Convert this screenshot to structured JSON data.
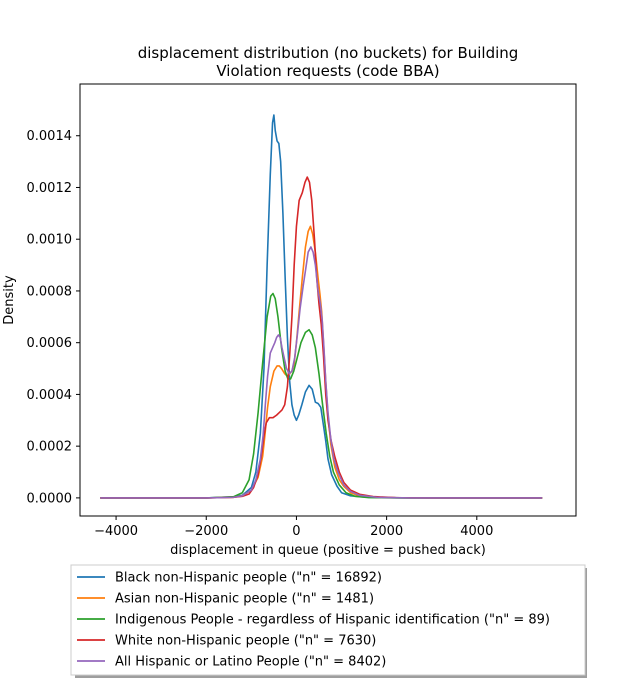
{
  "chart_data": {
    "type": "line",
    "title_line1": "displacement distribution (no buckets)  for Building",
    "title_line2": "Violation requests (code BBA)",
    "xlabel": "displacement in queue (positive = pushed back)",
    "ylabel": "Density",
    "xlim": [
      -4800,
      6200
    ],
    "ylim": [
      -7e-05,
      0.0016
    ],
    "x_ticks": [
      -4000,
      -2000,
      0,
      2000,
      4000
    ],
    "x_tick_labels": [
      "−4000",
      "−2000",
      "0",
      "2000",
      "4000"
    ],
    "y_ticks": [
      0.0,
      0.0002,
      0.0004,
      0.0006,
      0.0008,
      0.001,
      0.0012,
      0.0014
    ],
    "y_tick_labels": [
      "0.0000",
      "0.0002",
      "0.0004",
      "0.0006",
      "0.0008",
      "0.0010",
      "0.0012",
      "0.0014"
    ],
    "grid": false,
    "legend_placement": "below",
    "series": [
      {
        "name": "Black non-Hispanic people (\"n\" = 16892)",
        "color": "#1f77b4",
        "points": [
          [
            -4350,
            0
          ],
          [
            -2000,
            0
          ],
          [
            -1400,
            4e-06
          ],
          [
            -1200,
            1e-05
          ],
          [
            -1000,
            4e-05
          ],
          [
            -900,
            0.0001
          ],
          [
            -800,
            0.00025
          ],
          [
            -720,
            0.0005
          ],
          [
            -650,
            0.0009
          ],
          [
            -580,
            0.00125
          ],
          [
            -530,
            0.00145
          ],
          [
            -500,
            0.00148
          ],
          [
            -470,
            0.00142
          ],
          [
            -430,
            0.00138
          ],
          [
            -390,
            0.00137
          ],
          [
            -350,
            0.0013
          ],
          [
            -300,
            0.0011
          ],
          [
            -250,
            0.00085
          ],
          [
            -200,
            0.00062
          ],
          [
            -150,
            0.00045
          ],
          [
            -100,
            0.00036
          ],
          [
            -50,
            0.00032
          ],
          [
            0,
            0.0003
          ],
          [
            50,
            0.00032
          ],
          [
            120,
            0.00036
          ],
          [
            200,
            0.00041
          ],
          [
            280,
            0.000435
          ],
          [
            350,
            0.00042
          ],
          [
            420,
            0.00037
          ],
          [
            480,
            0.000365
          ],
          [
            540,
            0.00035
          ],
          [
            600,
            0.00028
          ],
          [
            650,
            0.00022
          ],
          [
            700,
            0.00015
          ],
          [
            780,
            9e-05
          ],
          [
            900,
            4.5e-05
          ],
          [
            1000,
            2e-05
          ],
          [
            1200,
            8e-06
          ],
          [
            1600,
            2e-06
          ],
          [
            2500,
            0
          ],
          [
            5450,
            0
          ]
        ]
      },
      {
        "name": "Asian non-Hispanic people (\"n\" = 1481)",
        "color": "#ff7f0e",
        "points": [
          [
            -4350,
            0
          ],
          [
            -2000,
            0
          ],
          [
            -1400,
            2e-06
          ],
          [
            -1200,
            8e-06
          ],
          [
            -1000,
            3e-05
          ],
          [
            -850,
            8e-05
          ],
          [
            -750,
            0.00016
          ],
          [
            -700,
            0.00024
          ],
          [
            -640,
            0.00035
          ],
          [
            -580,
            0.00043
          ],
          [
            -500,
            0.00049
          ],
          [
            -430,
            0.00051
          ],
          [
            -380,
            0.00051
          ],
          [
            -330,
            0.0005
          ],
          [
            -260,
            0.00048
          ],
          [
            -200,
            0.00047
          ],
          [
            -150,
            0.00048
          ],
          [
            -100,
            0.00049
          ],
          [
            -50,
            0.00052
          ],
          [
            0,
            0.0006
          ],
          [
            60,
            0.00072
          ],
          [
            130,
            0.00085
          ],
          [
            200,
            0.00097
          ],
          [
            260,
            0.00103
          ],
          [
            310,
            0.00105
          ],
          [
            360,
            0.00102
          ],
          [
            420,
            0.00095
          ],
          [
            480,
            0.00085
          ],
          [
            520,
            0.00079
          ],
          [
            560,
            0.00072
          ],
          [
            600,
            0.0006
          ],
          [
            650,
            0.00045
          ],
          [
            700,
            0.00032
          ],
          [
            760,
            0.00021
          ],
          [
            850,
            0.00012
          ],
          [
            950,
            7e-05
          ],
          [
            1050,
            4.5e-05
          ],
          [
            1200,
            2e-05
          ],
          [
            1400,
            8e-06
          ],
          [
            1800,
            2e-06
          ],
          [
            2500,
            0
          ],
          [
            5450,
            0
          ]
        ]
      },
      {
        "name": "Indigenous People - regardless of Hispanic identification (\"n\" = 89)",
        "color": "#2ca02c",
        "points": [
          [
            -4350,
            0
          ],
          [
            -2000,
            0
          ],
          [
            -1400,
            4e-06
          ],
          [
            -1200,
            2e-05
          ],
          [
            -1050,
            7e-05
          ],
          [
            -950,
            0.00017
          ],
          [
            -850,
            0.00033
          ],
          [
            -750,
            0.00052
          ],
          [
            -650,
            0.0007
          ],
          [
            -570,
            0.00078
          ],
          [
            -520,
            0.00079
          ],
          [
            -470,
            0.00077
          ],
          [
            -410,
            0.0007
          ],
          [
            -330,
            0.00058
          ],
          [
            -250,
            0.00049
          ],
          [
            -190,
            0.00046
          ],
          [
            -130,
            0.00046
          ],
          [
            -60,
            0.00049
          ],
          [
            0,
            0.00053
          ],
          [
            100,
            0.0006
          ],
          [
            200,
            0.00064
          ],
          [
            280,
            0.00065
          ],
          [
            350,
            0.00063
          ],
          [
            420,
            0.00058
          ],
          [
            500,
            0.00048
          ],
          [
            580,
            0.00036
          ],
          [
            660,
            0.00025
          ],
          [
            740,
            0.00016
          ],
          [
            820,
            0.0001
          ],
          [
            950,
            5e-05
          ],
          [
            1100,
            2e-05
          ],
          [
            1300,
            6e-06
          ],
          [
            1600,
            1e-06
          ],
          [
            2200,
            0
          ],
          [
            5450,
            0
          ]
        ]
      },
      {
        "name": "White non-Hispanic people (\"n\" = 7630)",
        "color": "#d62728",
        "points": [
          [
            -4350,
            0
          ],
          [
            -2000,
            0
          ],
          [
            -1400,
            2e-06
          ],
          [
            -1200,
            6e-06
          ],
          [
            -1050,
            1.5e-05
          ],
          [
            -950,
            4e-05
          ],
          [
            -850,
            9e-05
          ],
          [
            -780,
            0.00016
          ],
          [
            -720,
            0.00024
          ],
          [
            -670,
            0.00029
          ],
          [
            -600,
            0.00031
          ],
          [
            -520,
            0.00031
          ],
          [
            -440,
            0.00032
          ],
          [
            -380,
            0.00033
          ],
          [
            -320,
            0.00034
          ],
          [
            -260,
            0.00036
          ],
          [
            -200,
            0.00043
          ],
          [
            -150,
            0.00055
          ],
          [
            -100,
            0.0007
          ],
          [
            -50,
            0.0009
          ],
          [
            0,
            0.00105
          ],
          [
            60,
            0.00115
          ],
          [
            130,
            0.00118
          ],
          [
            190,
            0.00122
          ],
          [
            240,
            0.00124
          ],
          [
            290,
            0.00122
          ],
          [
            340,
            0.00115
          ],
          [
            400,
            0.001
          ],
          [
            450,
            0.00085
          ],
          [
            500,
            0.00075
          ],
          [
            550,
            0.00067
          ],
          [
            600,
            0.00055
          ],
          [
            650,
            0.0004
          ],
          [
            700,
            0.0003
          ],
          [
            770,
            0.00022
          ],
          [
            850,
            0.00016
          ],
          [
            950,
            0.0001
          ],
          [
            1050,
            6e-05
          ],
          [
            1200,
            3e-05
          ],
          [
            1400,
            1.4e-05
          ],
          [
            1700,
            5e-06
          ],
          [
            2200,
            1e-06
          ],
          [
            3000,
            0
          ],
          [
            5450,
            0
          ]
        ]
      },
      {
        "name": "All Hispanic or Latino People (\"n\" = 8402)",
        "color": "#9467bd",
        "points": [
          [
            -4350,
            0
          ],
          [
            -2000,
            0
          ],
          [
            -1400,
            2e-06
          ],
          [
            -1200,
            8e-06
          ],
          [
            -1000,
            3e-05
          ],
          [
            -900,
            7e-05
          ],
          [
            -800,
            0.00015
          ],
          [
            -740,
            0.00024
          ],
          [
            -690,
            0.00036
          ],
          [
            -640,
            0.00047
          ],
          [
            -580,
            0.00056
          ],
          [
            -530,
            0.00058
          ],
          [
            -480,
            0.0006
          ],
          [
            -440,
            0.00062
          ],
          [
            -400,
            0.00063
          ],
          [
            -360,
            0.00062
          ],
          [
            -320,
            0.00058
          ],
          [
            -270,
            0.00054
          ],
          [
            -220,
            0.0005
          ],
          [
            -160,
            0.00048
          ],
          [
            -100,
            0.00049
          ],
          [
            -40,
            0.00054
          ],
          [
            20,
            0.00063
          ],
          [
            80,
            0.00073
          ],
          [
            150,
            0.00082
          ],
          [
            210,
            0.00089
          ],
          [
            260,
            0.00095
          ],
          [
            320,
            0.00097
          ],
          [
            370,
            0.00095
          ],
          [
            420,
            0.0009
          ],
          [
            480,
            0.0008
          ],
          [
            530,
            0.00075
          ],
          [
            570,
            0.00069
          ],
          [
            610,
            0.00058
          ],
          [
            650,
            0.00045
          ],
          [
            700,
            0.00033
          ],
          [
            760,
            0.00023
          ],
          [
            830,
            0.00015
          ],
          [
            920,
            0.0001
          ],
          [
            1050,
            5e-05
          ],
          [
            1200,
            2.5e-05
          ],
          [
            1400,
            1e-05
          ],
          [
            1800,
            2e-06
          ],
          [
            2500,
            0
          ],
          [
            5450,
            0
          ]
        ]
      }
    ]
  }
}
